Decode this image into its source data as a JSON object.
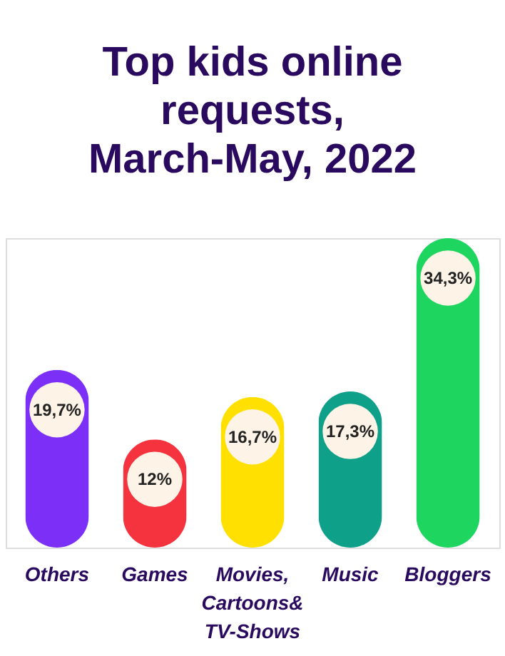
{
  "chart_data": {
    "type": "bar",
    "title": "Top kids online requests, March-May, 2022",
    "categories": [
      "Others",
      "Games",
      "Movies,\nCartoons&\nTV-Shows",
      "Music",
      "Bloggers"
    ],
    "values": [
      19.7,
      12,
      16.7,
      17.3,
      34.3
    ],
    "value_labels": [
      "19,7%",
      "12%",
      "16,7%",
      "17,3%",
      "34,3%"
    ],
    "colors": [
      "#7b2ff7",
      "#f5333f",
      "#ffe000",
      "#0fa08a",
      "#1ed65f"
    ]
  }
}
